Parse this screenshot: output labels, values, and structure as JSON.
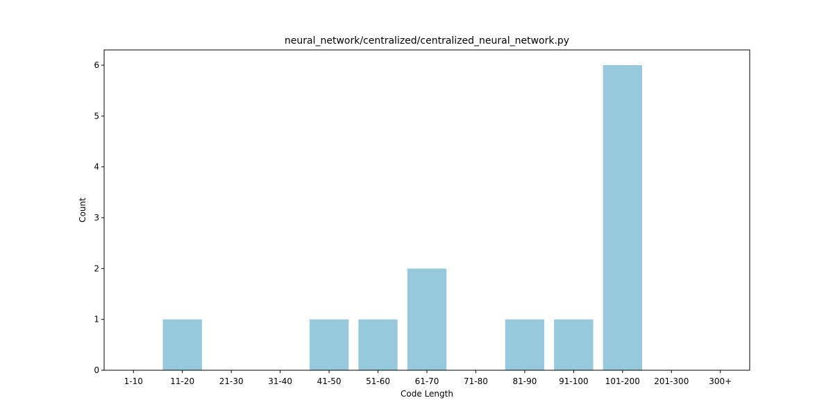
{
  "chart_data": {
    "type": "bar",
    "title": "neural_network/centralized/centralized_neural_network.py",
    "xlabel": "Code Length",
    "ylabel": "Count",
    "categories": [
      "1-10",
      "11-20",
      "21-30",
      "31-40",
      "41-50",
      "51-60",
      "61-70",
      "71-80",
      "81-90",
      "91-100",
      "101-200",
      "201-300",
      "300+"
    ],
    "values": [
      0,
      1,
      0,
      0,
      1,
      1,
      2,
      0,
      1,
      1,
      6,
      0,
      0
    ],
    "ylim": [
      0,
      6.3
    ],
    "yticks": [
      0,
      1,
      2,
      3,
      4,
      5,
      6
    ],
    "grid": false,
    "legend": "none",
    "bar_color": "#96c9dc"
  }
}
